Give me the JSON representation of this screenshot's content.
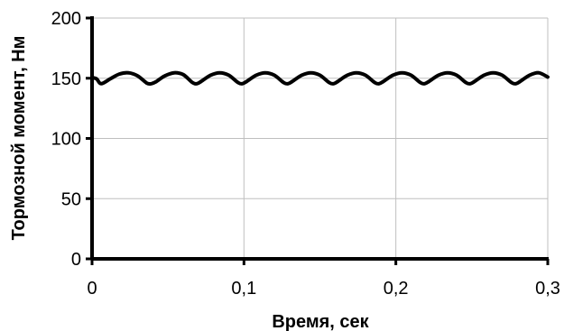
{
  "chart_data": {
    "type": "line",
    "title": "",
    "xlabel": "Время, сек",
    "ylabel": "Тормозной момент, Нм",
    "xlim": [
      0,
      0.3
    ],
    "ylim": [
      0,
      200
    ],
    "x_ticks": [
      0,
      0.1,
      0.2,
      0.3
    ],
    "x_tick_labels": [
      "0",
      "0,1",
      "0,2",
      "0,3"
    ],
    "y_ticks": [
      0,
      50,
      100,
      150,
      200
    ],
    "y_tick_labels": [
      "0",
      "50",
      "100",
      "150",
      "200"
    ],
    "grid": true,
    "legend": "none",
    "series": [
      {
        "color": "#000000",
        "x": [
          0,
          0.003,
          0.006,
          0.012,
          0.018,
          0.024,
          0.03,
          0.036,
          0.039,
          0.042,
          0.048,
          0.054,
          0.06,
          0.066,
          0.069,
          0.072,
          0.078,
          0.084,
          0.09,
          0.096,
          0.099,
          0.102,
          0.108,
          0.114,
          0.12,
          0.126,
          0.129,
          0.132,
          0.138,
          0.144,
          0.15,
          0.156,
          0.159,
          0.162,
          0.168,
          0.174,
          0.18,
          0.186,
          0.189,
          0.192,
          0.198,
          0.204,
          0.21,
          0.216,
          0.219,
          0.222,
          0.228,
          0.234,
          0.24,
          0.246,
          0.249,
          0.252,
          0.258,
          0.264,
          0.27,
          0.276,
          0.279,
          0.282,
          0.288,
          0.294,
          0.3
        ],
        "y": [
          150.5,
          149.5,
          145.5,
          149.5,
          153.5,
          154.5,
          152,
          146,
          145.5,
          147,
          152,
          154.5,
          153,
          146.5,
          145.5,
          147.5,
          152.5,
          154.5,
          152.5,
          146.5,
          145.5,
          147.5,
          152.5,
          154.5,
          152.5,
          146.5,
          145.5,
          147.5,
          152.5,
          154.5,
          152.5,
          146.5,
          145.5,
          147.5,
          152.5,
          154.5,
          152.5,
          146.5,
          145.5,
          147.5,
          152.5,
          154.5,
          152.5,
          146.5,
          145.5,
          147.5,
          152.5,
          154.5,
          152.5,
          146.5,
          145.5,
          147.5,
          152.5,
          154.5,
          152.5,
          146.5,
          145.5,
          147.5,
          152.5,
          154.5,
          151
        ]
      }
    ]
  }
}
